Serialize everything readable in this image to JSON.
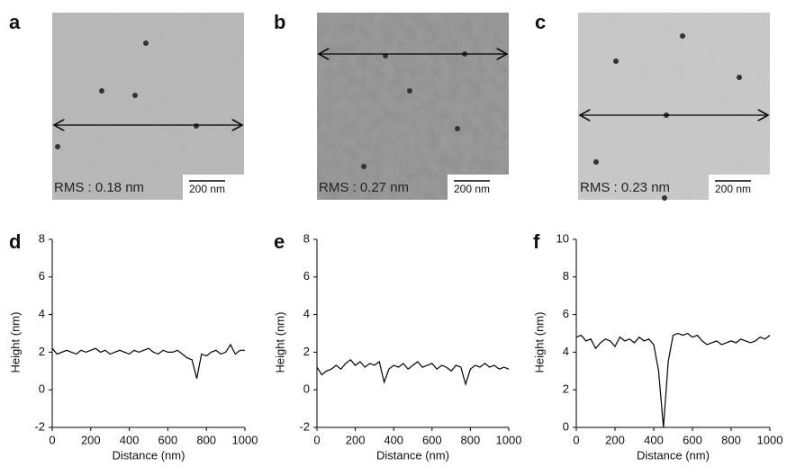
{
  "images": [
    {
      "label": "a",
      "rms": "RMS : 0.18 nm",
      "scale_bar": "200 nm"
    },
    {
      "label": "b",
      "rms": "RMS : 0.27 nm",
      "scale_bar": "200 nm"
    },
    {
      "label": "c",
      "rms": "RMS : 0.23 nm",
      "scale_bar": "200 nm"
    }
  ],
  "chart_data": [
    {
      "type": "line",
      "panel": "d",
      "x_label": "Distance (nm)",
      "y_label": "Height (nm)",
      "x": [
        0,
        25,
        50,
        75,
        100,
        125,
        150,
        175,
        200,
        225,
        250,
        275,
        300,
        325,
        350,
        375,
        400,
        425,
        450,
        475,
        500,
        525,
        550,
        575,
        600,
        625,
        650,
        675,
        700,
        725,
        750,
        775,
        800,
        825,
        850,
        875,
        900,
        925,
        950,
        975,
        1000
      ],
      "series": [
        {
          "color": "#000000",
          "values": [
            2.2,
            1.9,
            2.0,
            2.1,
            2.0,
            1.9,
            2.1,
            2.0,
            2.1,
            2.2,
            2.0,
            2.1,
            1.9,
            2.0,
            2.1,
            2.0,
            1.9,
            2.1,
            2.0,
            2.1,
            2.2,
            2.0,
            1.9,
            2.1,
            2.0,
            2.0,
            2.1,
            1.9,
            1.7,
            1.6,
            0.6,
            1.9,
            1.8,
            2.0,
            2.1,
            1.9,
            2.0,
            2.4,
            1.9,
            2.1,
            2.1
          ]
        }
      ],
      "xlim": [
        0,
        1000
      ],
      "xticks": [
        0,
        200,
        400,
        600,
        800,
        1000
      ],
      "ylim": [
        -2,
        8
      ],
      "yticks": [
        -2,
        0,
        2,
        4,
        6,
        8
      ]
    },
    {
      "type": "line",
      "panel": "e",
      "x_label": "Distance (nm)",
      "y_label": "Height (nm)",
      "x": [
        0,
        25,
        50,
        75,
        100,
        125,
        150,
        175,
        200,
        225,
        250,
        275,
        300,
        325,
        350,
        375,
        400,
        425,
        450,
        475,
        500,
        525,
        550,
        575,
        600,
        625,
        650,
        675,
        700,
        725,
        750,
        775,
        800,
        825,
        850,
        875,
        900,
        925,
        950,
        975,
        1000
      ],
      "series": [
        {
          "color": "#000000",
          "values": [
            1.2,
            0.8,
            1.0,
            1.1,
            1.3,
            1.1,
            1.4,
            1.6,
            1.3,
            1.5,
            1.2,
            1.4,
            1.3,
            1.5,
            0.4,
            1.1,
            1.3,
            1.2,
            1.4,
            1.1,
            1.3,
            1.5,
            1.2,
            1.3,
            1.4,
            1.1,
            1.3,
            1.2,
            1.0,
            1.3,
            1.2,
            0.3,
            1.1,
            1.3,
            1.2,
            1.4,
            1.2,
            1.3,
            1.1,
            1.2,
            1.1
          ]
        }
      ],
      "xlim": [
        0,
        1000
      ],
      "xticks": [
        0,
        200,
        400,
        600,
        800,
        1000
      ],
      "ylim": [
        -2,
        8
      ],
      "yticks": [
        -2,
        0,
        2,
        4,
        6,
        8
      ]
    },
    {
      "type": "line",
      "panel": "f",
      "x_label": "Distance (nm)",
      "y_label": "Height (nm)",
      "x": [
        0,
        25,
        50,
        75,
        100,
        125,
        150,
        175,
        200,
        225,
        250,
        275,
        300,
        325,
        350,
        375,
        400,
        425,
        450,
        475,
        500,
        525,
        550,
        575,
        600,
        625,
        650,
        675,
        700,
        725,
        750,
        775,
        800,
        825,
        850,
        875,
        900,
        925,
        950,
        975,
        1000
      ],
      "series": [
        {
          "color": "#000000",
          "values": [
            4.8,
            4.9,
            4.6,
            4.7,
            4.2,
            4.5,
            4.7,
            4.6,
            4.3,
            4.8,
            4.6,
            4.7,
            4.5,
            4.8,
            4.6,
            4.7,
            4.4,
            3.0,
            0,
            3.5,
            4.9,
            5.0,
            4.9,
            5.0,
            4.8,
            4.9,
            4.6,
            4.4,
            4.5,
            4.6,
            4.4,
            4.5,
            4.6,
            4.5,
            4.7,
            4.6,
            4.5,
            4.6,
            4.8,
            4.7,
            4.9
          ]
        }
      ],
      "xlim": [
        0,
        1000
      ],
      "xticks": [
        0,
        200,
        400,
        600,
        800,
        1000
      ],
      "ylim": [
        0,
        10
      ],
      "yticks": [
        0,
        2,
        4,
        6,
        8,
        10
      ]
    }
  ]
}
